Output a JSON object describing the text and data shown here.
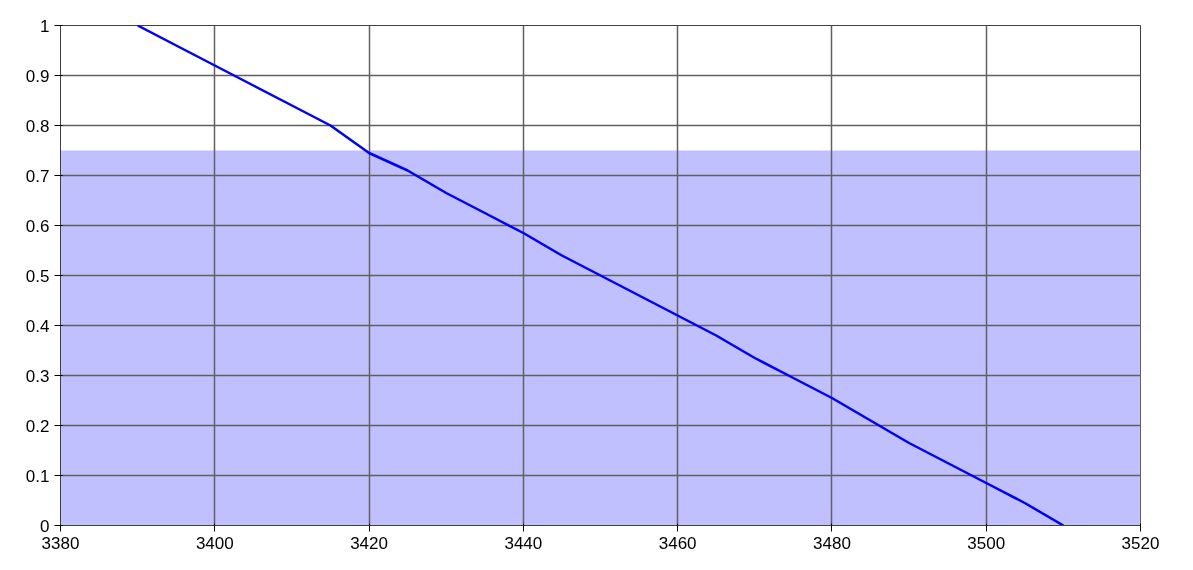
{
  "chart_data": {
    "type": "line",
    "x": [
      3390,
      3395,
      3400,
      3405,
      3410,
      3415,
      3420,
      3425,
      3430,
      3435,
      3440,
      3445,
      3450,
      3455,
      3460,
      3465,
      3470,
      3475,
      3480,
      3485,
      3490,
      3495,
      3500,
      3505,
      3510
    ],
    "series": [
      {
        "color": "#0000ff",
        "values": [
          1.0,
          0.96,
          0.92,
          0.88,
          0.84,
          0.8,
          0.745,
          0.71,
          0.665,
          0.625,
          0.585,
          0.54,
          0.5,
          0.46,
          0.42,
          0.38,
          0.335,
          0.295,
          0.255,
          0.21,
          0.165,
          0.125,
          0.085,
          0.045,
          0.0
        ]
      }
    ],
    "xlim": [
      3380,
      3520
    ],
    "xticks": [
      3380,
      3400,
      3420,
      3440,
      3460,
      3480,
      3500,
      3520
    ],
    "ylim": [
      0,
      1
    ],
    "yticks": [
      0,
      0.1,
      0.2,
      0.3,
      0.4,
      0.5,
      0.6,
      0.7,
      0.8,
      0.9,
      1
    ],
    "bands": [
      {
        "axis": "y",
        "from": 0,
        "to": 0.75,
        "color": "#c0c0ff"
      }
    ],
    "grid": true,
    "marker": "none",
    "line_style": "solid"
  }
}
